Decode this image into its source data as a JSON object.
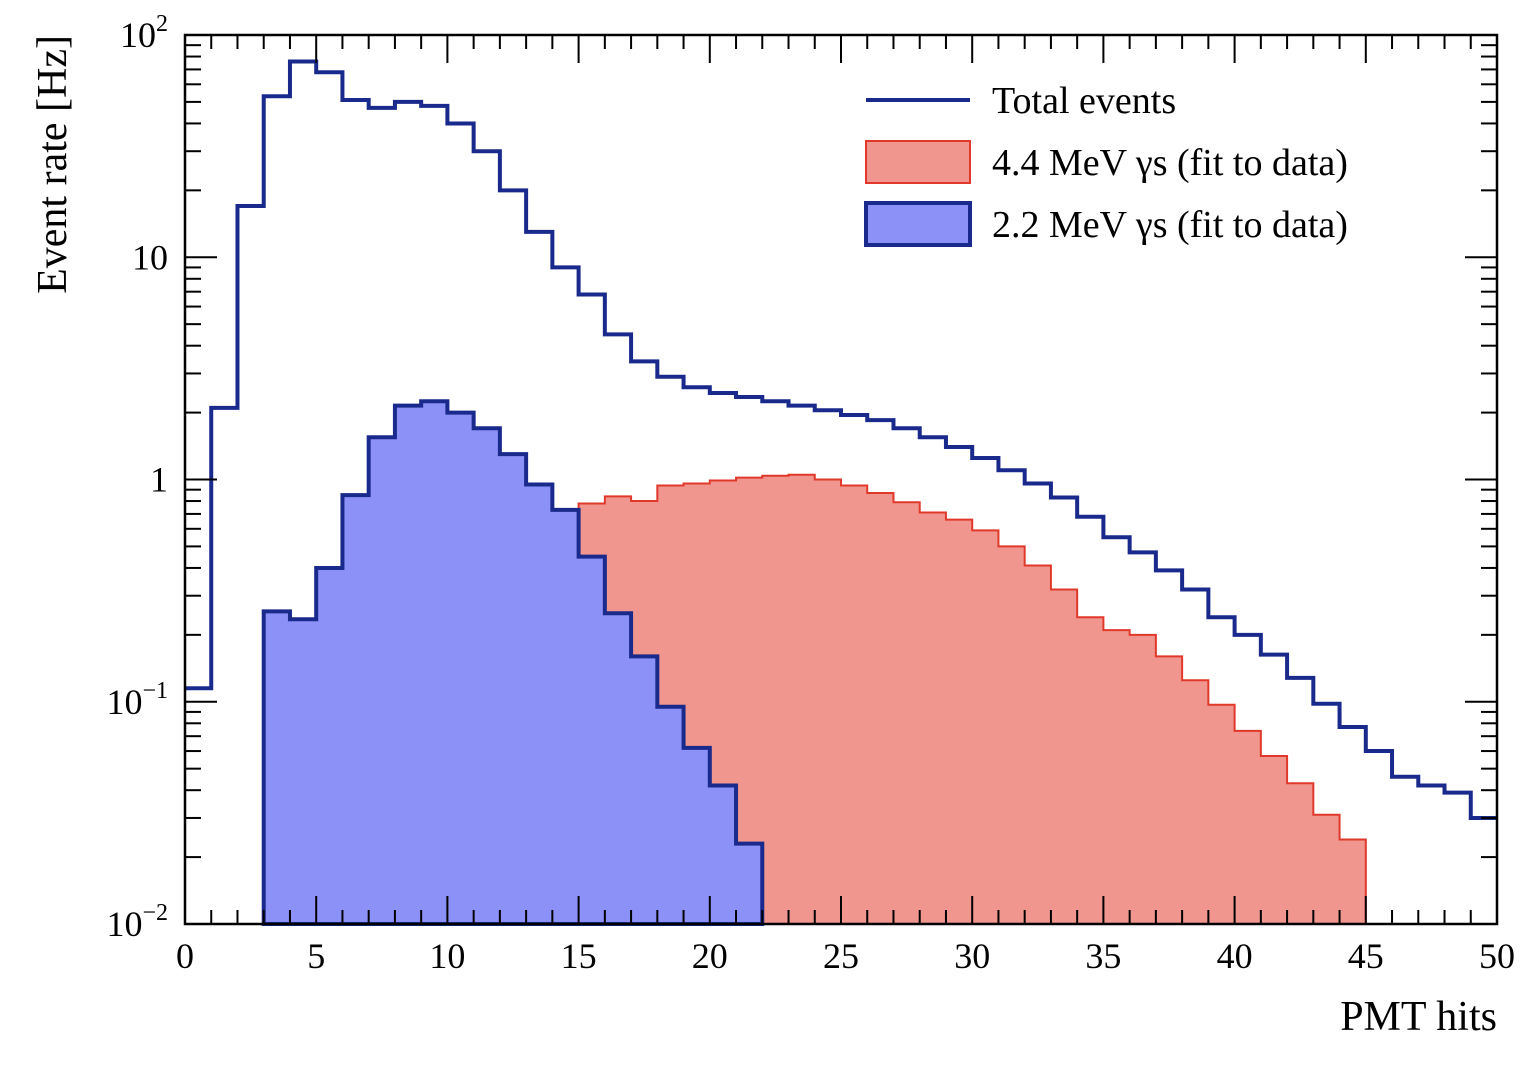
{
  "chart_data": {
    "type": "histogram",
    "xlabel": "PMT hits",
    "ylabel": "Event rate [Hz]",
    "xlim": [
      0,
      50
    ],
    "ylim": [
      0.01,
      100
    ],
    "yscale": "log",
    "bin_width": 1,
    "x_ticks": [
      0,
      5,
      10,
      15,
      20,
      25,
      30,
      35,
      40,
      45,
      50
    ],
    "x_tick_labels": [
      "0",
      "5",
      "10",
      "15",
      "20",
      "25",
      "30",
      "35",
      "40",
      "45",
      "50"
    ],
    "y_ticks": [
      {
        "value": 0.01,
        "base": "10",
        "exp": "−2"
      },
      {
        "value": 0.1,
        "base": "10",
        "exp": "−1"
      },
      {
        "value": 1,
        "base": "1",
        "exp": ""
      },
      {
        "value": 10,
        "base": "10",
        "exp": ""
      },
      {
        "value": 100,
        "base": "10",
        "exp": "2"
      }
    ],
    "legend_position": "top-right",
    "series": [
      {
        "name": "Total events",
        "style": "line",
        "color": "#1a2a8c",
        "bin_edges_start": 0,
        "values": [
          0.115,
          2.1,
          17,
          53,
          76,
          68,
          51,
          47,
          50,
          48,
          40,
          30,
          20,
          13,
          9,
          6.8,
          4.5,
          3.4,
          2.9,
          2.6,
          2.45,
          2.35,
          2.25,
          2.15,
          2.05,
          1.95,
          1.85,
          1.7,
          1.55,
          1.4,
          1.25,
          1.1,
          0.96,
          0.83,
          0.68,
          0.55,
          0.47,
          0.39,
          0.32,
          0.24,
          0.2,
          0.163,
          0.128,
          0.098,
          0.077,
          0.06,
          0.046,
          0.042,
          0.039,
          0.03
        ]
      },
      {
        "name": "4.4 MeV γs (fit to data)",
        "style": "fill",
        "color": "#f0968e",
        "edge_color": "#e0392b",
        "bin_edges_start": 15,
        "values": [
          0.78,
          0.84,
          0.8,
          0.94,
          0.96,
          0.99,
          1.02,
          1.04,
          1.05,
          1.0,
          0.94,
          0.87,
          0.79,
          0.71,
          0.66,
          0.59,
          0.5,
          0.41,
          0.32,
          0.24,
          0.21,
          0.2,
          0.16,
          0.125,
          0.097,
          0.074,
          0.057,
          0.043,
          0.031,
          0.024
        ]
      },
      {
        "name": "2.2 MeV γs (fit to data)",
        "style": "fill",
        "color": "#8c91f7",
        "edge_color": "#1a2a8c",
        "bin_edges_start": 3,
        "values": [
          0.255,
          0.235,
          0.4,
          0.85,
          1.55,
          2.15,
          2.25,
          2.0,
          1.7,
          1.3,
          0.95,
          0.73,
          0.45,
          0.25,
          0.16,
          0.095,
          0.062,
          0.042,
          0.023
        ]
      }
    ]
  }
}
